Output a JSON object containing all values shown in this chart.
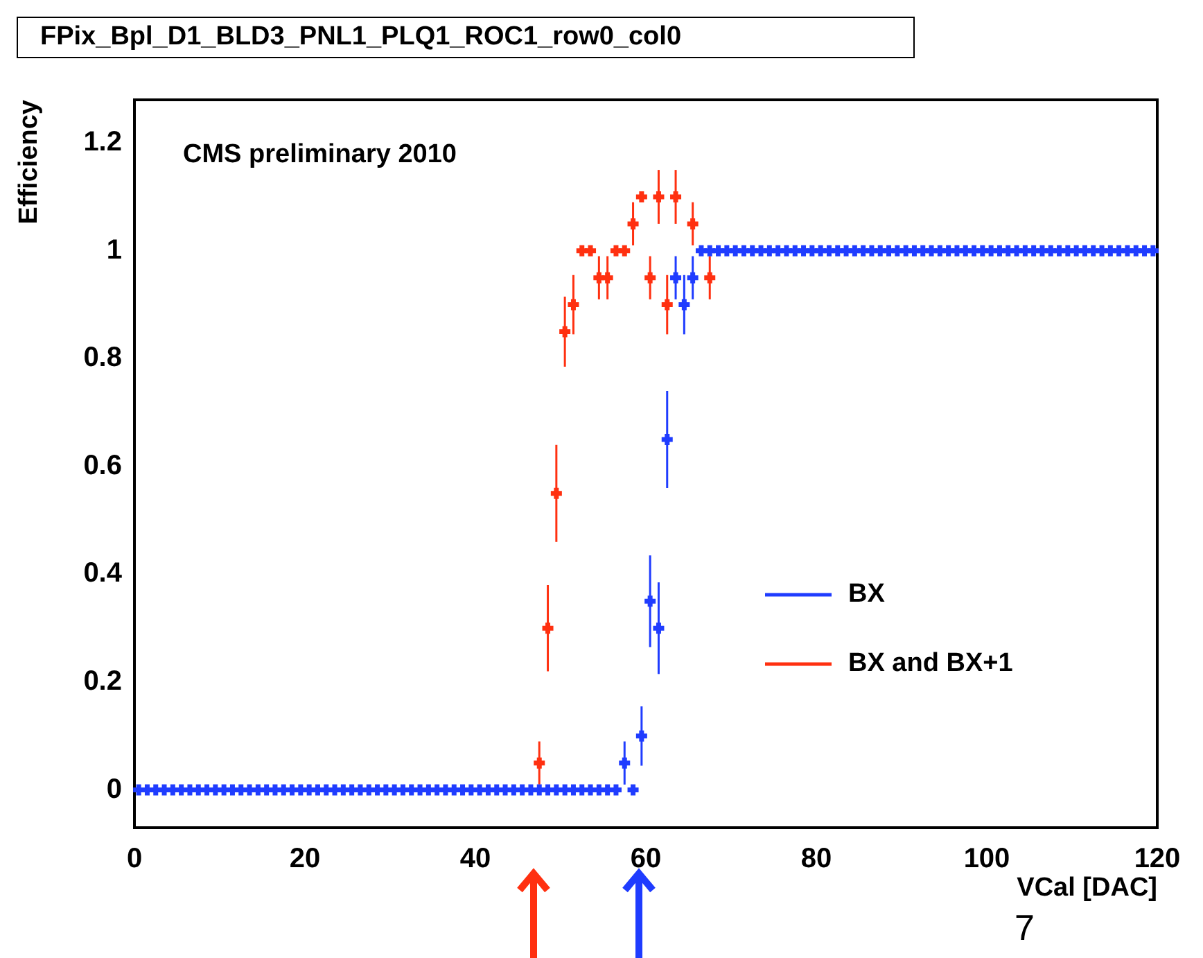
{
  "chart_data": {
    "type": "scatter",
    "title": "FPix_Bpl_D1_BLD3_PNL1_PLQ1_ROC1_row0_col0",
    "xlabel": "VCal [DAC]",
    "ylabel": "Efficiency",
    "annotations": [
      "CMS preliminary 2010",
      "7"
    ],
    "xlim": [
      0,
      120
    ],
    "xticks": [
      0,
      20,
      40,
      60,
      80,
      100,
      120
    ],
    "ylim": [
      -0.07,
      1.28
    ],
    "yticks": [
      0,
      0.2,
      0.4,
      0.6,
      0.8,
      1,
      1.2
    ],
    "legend": "right",
    "marker": "cross",
    "series": [
      {
        "name": "BX",
        "color": "#1f3cff",
        "x": [
          0.5,
          1.5,
          2.5,
          3.5,
          4.5,
          5.5,
          6.5,
          7.5,
          8.5,
          9.5,
          10.5,
          11.5,
          12.5,
          13.5,
          14.5,
          15.5,
          16.5,
          17.5,
          18.5,
          19.5,
          20.5,
          21.5,
          22.5,
          23.5,
          24.5,
          25.5,
          26.5,
          27.5,
          28.5,
          29.5,
          30.5,
          31.5,
          32.5,
          33.5,
          34.5,
          35.5,
          36.5,
          37.5,
          38.5,
          39.5,
          40.5,
          41.5,
          42.5,
          43.5,
          44.5,
          45.5,
          46.5,
          47.5,
          48.5,
          49.5,
          50.5,
          51.5,
          52.5,
          53.5,
          54.5,
          55.5,
          56.5,
          57.5,
          58.5,
          59.5,
          60.5,
          61.5,
          62.5,
          63.5,
          64.5,
          65.5,
          66.5,
          67.5,
          68.5,
          69.5,
          70.5,
          71.5,
          72.5,
          73.5,
          74.5,
          75.5,
          76.5,
          77.5,
          78.5,
          79.5,
          80.5,
          81.5,
          82.5,
          83.5,
          84.5,
          85.5,
          86.5,
          87.5,
          88.5,
          89.5,
          90.5,
          91.5,
          92.5,
          93.5,
          94.5,
          95.5,
          96.5,
          97.5,
          98.5,
          99.5,
          100.5,
          101.5,
          102.5,
          103.5,
          104.5,
          105.5,
          106.5,
          107.5,
          108.5,
          109.5,
          110.5,
          111.5,
          112.5,
          113.5,
          114.5,
          115.5,
          116.5,
          117.5,
          118.5,
          119.5
        ],
        "values": [
          0,
          0,
          0,
          0,
          0,
          0,
          0,
          0,
          0,
          0,
          0,
          0,
          0,
          0,
          0,
          0,
          0,
          0,
          0,
          0,
          0,
          0,
          0,
          0,
          0,
          0,
          0,
          0,
          0,
          0,
          0,
          0,
          0,
          0,
          0,
          0,
          0,
          0,
          0,
          0,
          0,
          0,
          0,
          0,
          0,
          0,
          0,
          0,
          0,
          0,
          0,
          0,
          0,
          0,
          0,
          0,
          0,
          0.05,
          0,
          0.1,
          0.35,
          0.3,
          0.65,
          0.95,
          0.9,
          0.95,
          1,
          1,
          1,
          1,
          1,
          1,
          1,
          1,
          1,
          1,
          1,
          1,
          1,
          1,
          1,
          1,
          1,
          1,
          1,
          1,
          1,
          1,
          1,
          1,
          1,
          1,
          1,
          1,
          1,
          1,
          1,
          1,
          1,
          1,
          1,
          1,
          1,
          1,
          1,
          1,
          1,
          1,
          1,
          1,
          1,
          1,
          1,
          1,
          1,
          1,
          1,
          1,
          1,
          1
        ],
        "errors": [
          null,
          null,
          null,
          null,
          null,
          null,
          null,
          null,
          null,
          null,
          null,
          null,
          null,
          null,
          null,
          null,
          null,
          null,
          null,
          null,
          null,
          null,
          null,
          null,
          null,
          null,
          null,
          null,
          null,
          null,
          null,
          null,
          null,
          null,
          null,
          null,
          null,
          null,
          null,
          null,
          null,
          null,
          null,
          null,
          null,
          null,
          null,
          null,
          null,
          null,
          null,
          null,
          null,
          null,
          null,
          null,
          null,
          0.04,
          null,
          0.055,
          0.085,
          0.085,
          0.09,
          0.04,
          0.055,
          0.04,
          null,
          null,
          null,
          null,
          null,
          null,
          null,
          null,
          null,
          null,
          null,
          null,
          null,
          null,
          null,
          null,
          null,
          null,
          null,
          null,
          null,
          null,
          null,
          null,
          null,
          null,
          null,
          null,
          null,
          null,
          null,
          null,
          null,
          null,
          null,
          null,
          null,
          null,
          null,
          null,
          null,
          null,
          null,
          null,
          null,
          null,
          null,
          null,
          null,
          null,
          null,
          null,
          null,
          null
        ],
        "xerrors": [
          0.5,
          0.5,
          0.5,
          0.5,
          0.5,
          0.5,
          0.5,
          0.5,
          0.5,
          0.5,
          0.5,
          0.5,
          0.5,
          0.5,
          0.5,
          0.5,
          0.5,
          0.5,
          0.5,
          0.5,
          0.5,
          0.5,
          0.5,
          0.5,
          0.5,
          0.5,
          0.5,
          0.5,
          0.5,
          0.5,
          0.5,
          0.5,
          0.5,
          0.5,
          0.5,
          0.5,
          0.5,
          0.5,
          0.5,
          0.5,
          0.5,
          0.5,
          0.5,
          0.5,
          0.5,
          0.5,
          0.5,
          0.5,
          0.5,
          0.5,
          0.5,
          0.5,
          0.5,
          0.5,
          0.5,
          0.5,
          0.5,
          0.5,
          0.5,
          0.5,
          0.5,
          0.5,
          0.5,
          0.5,
          0.5,
          0.5,
          0.5,
          0.5,
          0.5,
          0.5,
          0.5,
          0.5,
          0.5,
          0.5,
          0.5,
          0.5,
          0.5,
          0.5,
          0.5,
          0.5,
          0.5,
          0.5,
          0.5,
          0.5,
          0.5,
          0.5,
          0.5,
          0.5,
          0.5,
          0.5,
          0.5,
          0.5,
          0.5,
          0.5,
          0.5,
          0.5,
          0.5,
          0.5,
          0.5,
          0.5,
          0.5,
          0.5,
          0.5,
          0.5,
          0.5,
          0.5,
          0.5,
          0.5,
          0.5,
          0.5,
          0.5,
          0.5,
          0.5,
          0.5,
          0.5,
          0.5,
          0.5,
          0.5,
          0.5,
          0.5
        ]
      },
      {
        "name": "BX and BX+1",
        "color": "#ff3010",
        "x": [
          47.5,
          48.5,
          49.5,
          50.5,
          51.5,
          52.5,
          53.5,
          54.5,
          55.5,
          56.5,
          57.5,
          58.5,
          59.5,
          60.5,
          61.5,
          62.5,
          63.5,
          65.5,
          67.5
        ],
        "values": [
          0.05,
          0.3,
          0.55,
          0.85,
          0.9,
          1,
          1,
          0.95,
          0.95,
          1,
          1,
          1.05,
          1.1,
          0.95,
          1.1,
          0.9,
          1.1,
          1.05,
          0.95
        ],
        "errors": [
          0.04,
          0.08,
          0.09,
          0.065,
          0.055,
          null,
          null,
          0.04,
          0.04,
          null,
          null,
          0.04,
          null,
          0.04,
          0.05,
          0.055,
          0.05,
          0.04,
          0.04
        ],
        "xerrors": [
          0.5,
          0.5,
          0.5,
          0.5,
          0.5,
          0.5,
          0.5,
          0.5,
          0.5,
          0.5,
          0.5,
          0.5,
          0.5,
          0.5,
          0.5,
          0.5,
          0.5,
          0.5,
          0.5
        ]
      }
    ]
  }
}
